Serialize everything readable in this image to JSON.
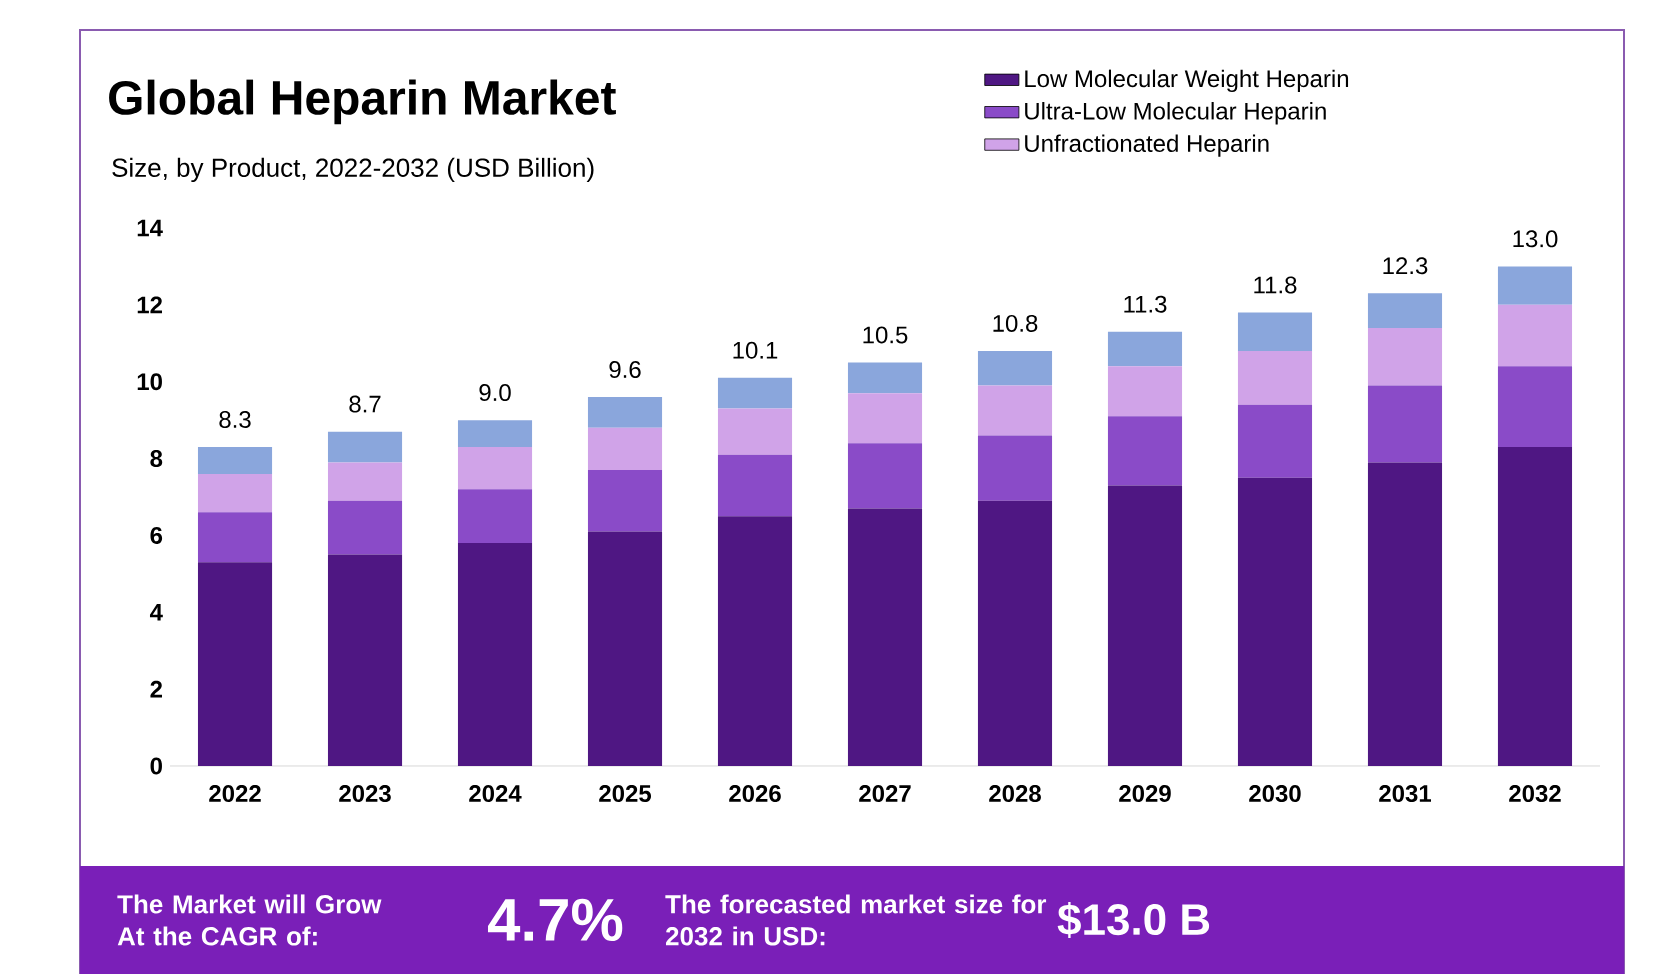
{
  "chart_data": {
    "type": "bar",
    "stacked": true,
    "title": "Global Heparin Market",
    "subtitle": "Size, by Product, 2022-2032 (USD Billion)",
    "categories": [
      "2022",
      "2023",
      "2024",
      "2025",
      "2026",
      "2027",
      "2028",
      "2029",
      "2030",
      "2031",
      "2032"
    ],
    "series": [
      {
        "name": "Low Molecular Weight Heparin",
        "color": "#4f1783",
        "values": [
          5.3,
          5.5,
          5.8,
          6.1,
          6.5,
          6.7,
          6.9,
          7.3,
          7.5,
          7.9,
          8.3
        ]
      },
      {
        "name": "Ultra-Low Molecular Heparin",
        "color": "#8a4bc8",
        "values": [
          1.3,
          1.4,
          1.4,
          1.6,
          1.6,
          1.7,
          1.7,
          1.8,
          1.9,
          2.0,
          2.1
        ]
      },
      {
        "name": "Unfractionated Heparin",
        "color": "#d0a3e8",
        "values": [
          1.0,
          1.0,
          1.1,
          1.1,
          1.2,
          1.3,
          1.3,
          1.3,
          1.4,
          1.5,
          1.6
        ]
      },
      {
        "color": "#8aa6dc",
        "values": [
          0.7,
          0.8,
          0.7,
          0.8,
          0.8,
          0.8,
          0.9,
          0.9,
          1.0,
          0.9,
          1.0
        ]
      }
    ],
    "totals": [
      "8.3",
      "8.7",
      "9.0",
      "9.6",
      "10.1",
      "10.5",
      "10.8",
      "11.3",
      "11.8",
      "12.3",
      "13.0"
    ],
    "ylim": [
      0,
      14
    ],
    "yticks": [
      0,
      2,
      4,
      6,
      8,
      10,
      12,
      14
    ],
    "legend": "top right",
    "annotations": [
      "The Market will Grow At the CAGR of:",
      "4.7%",
      "The forecasted market size for 2032 in USD:",
      "$13.0 B"
    ]
  }
}
